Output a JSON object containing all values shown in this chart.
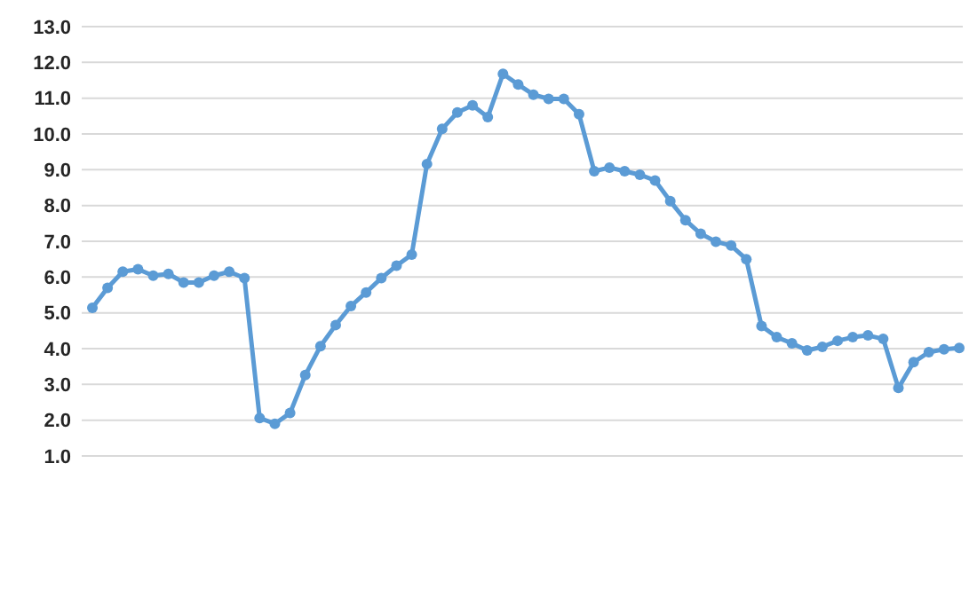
{
  "chart_data": {
    "type": "line",
    "categories": [
      null,
      null,
      null,
      null,
      null,
      null,
      null,
      null,
      null,
      null,
      null,
      null,
      null,
      null,
      null,
      null,
      null,
      null,
      null,
      null,
      null,
      null,
      null,
      null,
      null,
      null,
      null,
      null,
      null,
      null,
      null,
      null,
      null,
      null,
      null,
      null,
      null,
      null,
      null,
      null,
      null,
      null,
      null,
      null,
      null,
      null,
      null,
      null,
      null,
      null,
      null,
      null,
      null,
      null,
      null,
      null,
      null,
      null
    ],
    "series": [
      {
        "color": "#5b9bd5",
        "values": [
          5.14,
          5.7,
          6.15,
          6.22,
          6.04,
          6.09,
          5.85,
          5.85,
          6.04,
          6.15,
          5.97,
          2.06,
          1.9,
          2.2,
          3.26,
          4.07,
          4.66,
          5.19,
          5.57,
          5.97,
          6.32,
          6.63,
          9.16,
          10.14,
          10.6,
          10.8,
          10.47,
          11.68,
          11.38,
          11.1,
          10.98,
          10.98,
          10.55,
          8.96,
          9.06,
          8.96,
          8.86,
          8.7,
          8.12,
          7.59,
          7.21,
          6.99,
          6.88,
          6.5,
          4.63,
          4.32,
          4.15,
          3.95,
          4.05,
          4.22,
          4.32,
          4.37,
          4.27,
          2.9,
          3.62,
          3.9,
          3.98,
          4.02
        ]
      }
    ],
    "ylim": [
      1,
      13
    ],
    "yticks": [
      {
        "value": 1,
        "label": "1.0"
      },
      {
        "value": 2,
        "label": "2.0"
      },
      {
        "value": 3,
        "label": "3.0"
      },
      {
        "value": 4,
        "label": "4.0"
      },
      {
        "value": 5,
        "label": "5.0"
      },
      {
        "value": 6,
        "label": "6.0"
      },
      {
        "value": 7,
        "label": "7.0"
      },
      {
        "value": 8,
        "label": "8.0"
      },
      {
        "value": 9,
        "label": "9.0"
      },
      {
        "value": 10,
        "label": "10.0"
      },
      {
        "value": 11,
        "label": "11.0"
      },
      {
        "value": 12,
        "label": "12.0"
      },
      {
        "value": 13,
        "label": "13.0"
      }
    ],
    "grid": "y",
    "marker": "circle"
  }
}
